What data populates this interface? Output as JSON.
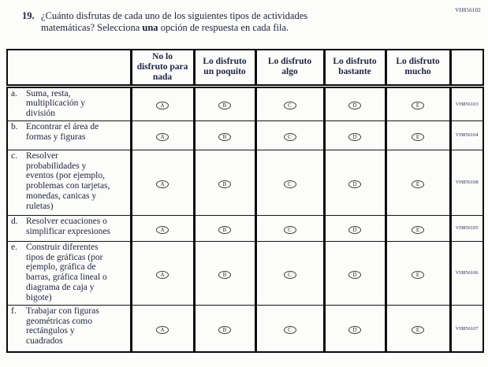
{
  "page": {
    "code_top_right": "VH856102"
  },
  "question": {
    "number": "19.",
    "text_before_bold": "¿Cuánto disfrutas de cada uno de los siguientes tipos de actividades\nmatemáticas? Selecciona ",
    "bold_word": "una",
    "text_after_bold": " opción de respuesta en cada fila."
  },
  "table": {
    "column_headers": [
      "No lo\ndisfruto para\nnada",
      "Lo disfruto\nun poquito",
      "Lo disfruto\nalgo",
      "Lo disfruto\nbastante",
      "Lo disfruto\nmucho"
    ],
    "option_letters": [
      "A",
      "B",
      "C",
      "D",
      "E"
    ],
    "rows": [
      {
        "letter": "a.",
        "text": "Suma, resta,\nmultiplicación y\ndivisión",
        "code": "VH856103"
      },
      {
        "letter": "b.",
        "text": "Encontrar el área de\nformas y figuras",
        "code": "VH856104"
      },
      {
        "letter": "c.",
        "text": "Resolver\nprobabilidades y\neventos (por ejemplo,\nproblemas con tarjetas,\nmonedas, canicas y\nruletas)",
        "code": "VH856108"
      },
      {
        "letter": "d.",
        "text": "Resolver ecuaciones o\nsimplificar expresiones",
        "code": "VH856105"
      },
      {
        "letter": "e.",
        "text": "Construir diferentes\ntipos de gráficas (por\nejemplo, gráfica de\nbarras, gráfica lineal o\ndiagrama de caja y\nbigote)",
        "code": "VH856106"
      },
      {
        "letter": "f.",
        "text": "Trabajar con figuras\ngeométricas como\nrectángulos y\ncuadrados",
        "code": "VH856107"
      }
    ]
  }
}
